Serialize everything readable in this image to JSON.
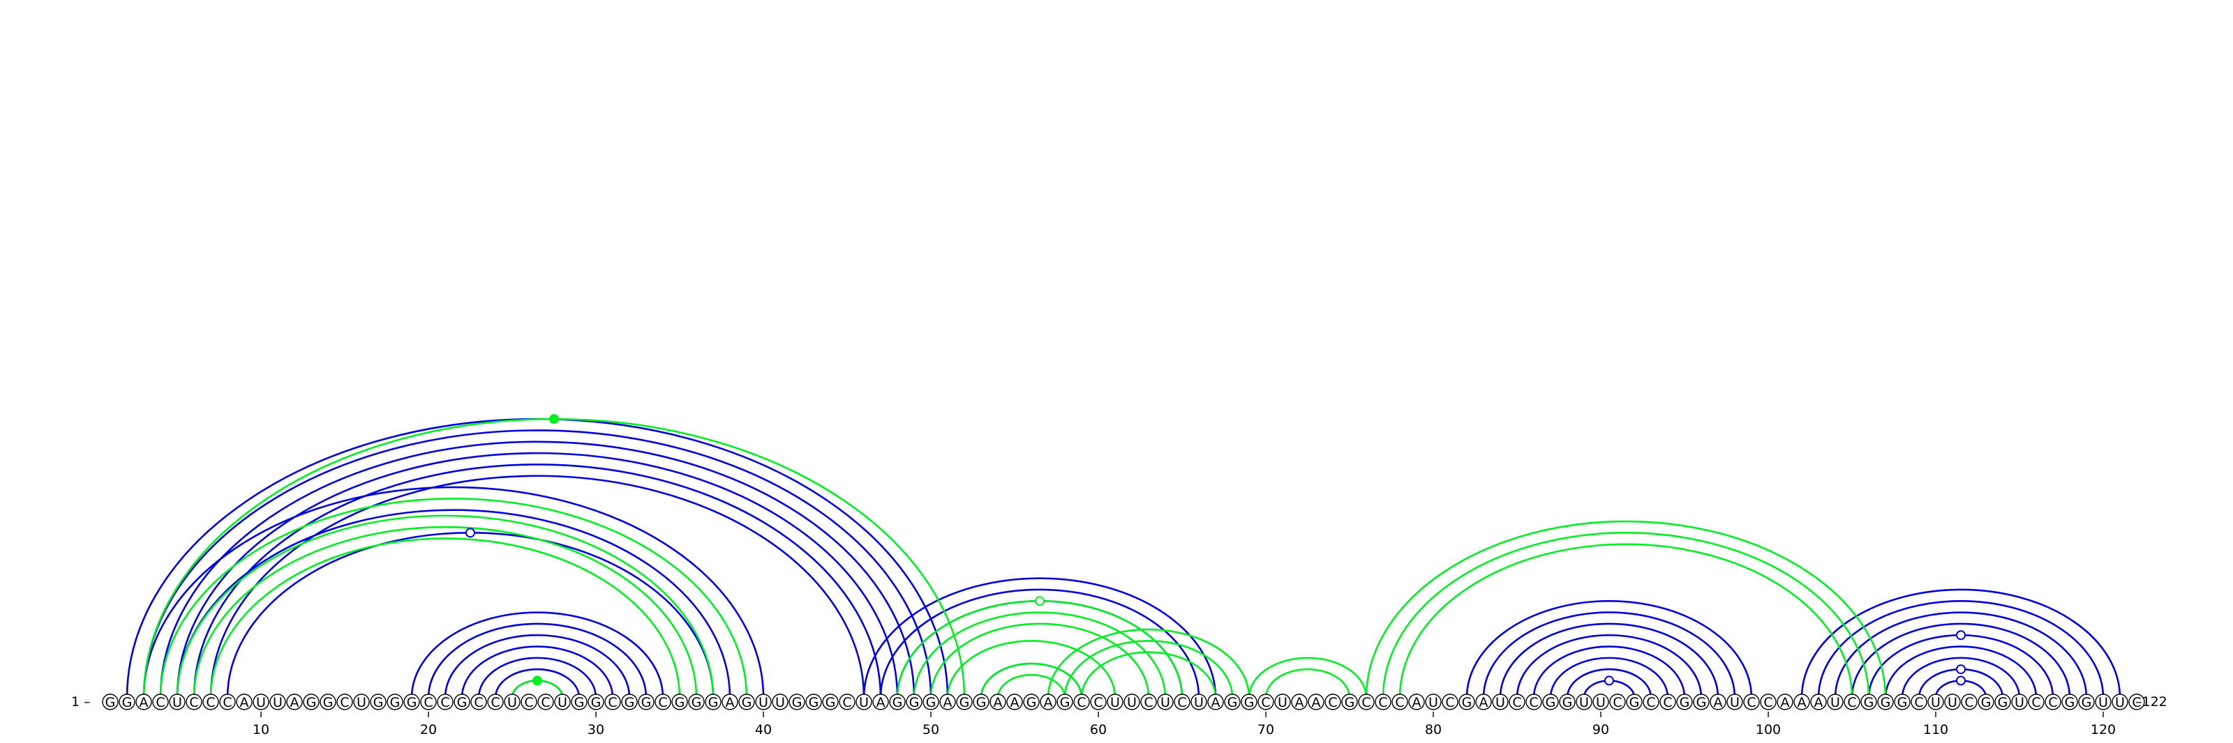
{
  "sequence": "GGACUCCCAUUAGGCUGGGCCGCCUCCUGGCGGCGGGAGUUGGGCUAGGGAGGAAGAGCCUUCUCUAGGCUAACGCCCAUCGAUCCGGUUCGCCGGAUCCAAAUCGGGCUUCGGUCCGGUUC",
  "start_label": "1 –",
  "end_label": "–122",
  "ticks": [
    "10",
    "20",
    "30",
    "40",
    "50",
    "60",
    "70",
    "80",
    "90",
    "100",
    "110",
    "120"
  ],
  "tick_positions": [
    10,
    20,
    30,
    40,
    50,
    60,
    70,
    80,
    90,
    100,
    110,
    120
  ],
  "colors": {
    "structure_a": "#0000dd",
    "structure_b": "#00ee22"
  },
  "arcs": [
    {
      "i": 2,
      "j": 51,
      "s": "a"
    },
    {
      "i": 3,
      "j": 50,
      "s": "a"
    },
    {
      "i": 4,
      "j": 49,
      "s": "a"
    },
    {
      "i": 5,
      "j": 48,
      "s": "a"
    },
    {
      "i": 6,
      "j": 47,
      "s": "a"
    },
    {
      "i": 7,
      "j": 46,
      "s": "a"
    },
    {
      "i": 3,
      "j": 40,
      "s": "a"
    },
    {
      "i": 5,
      "j": 38,
      "s": "a"
    },
    {
      "i": 8,
      "j": 37,
      "s": "a"
    },
    {
      "i": 19,
      "j": 34,
      "s": "a"
    },
    {
      "i": 20,
      "j": 33,
      "s": "a"
    },
    {
      "i": 21,
      "j": 32,
      "s": "a"
    },
    {
      "i": 22,
      "j": 31,
      "s": "a"
    },
    {
      "i": 23,
      "j": 30,
      "s": "a"
    },
    {
      "i": 24,
      "j": 29,
      "s": "a"
    },
    {
      "i": 25,
      "j": 28,
      "s": "a"
    },
    {
      "i": 46,
      "j": 67,
      "s": "a"
    },
    {
      "i": 47,
      "j": 66,
      "s": "a"
    },
    {
      "i": 48,
      "j": 65,
      "s": "a"
    },
    {
      "i": 53,
      "j": 59,
      "s": "a"
    },
    {
      "i": 82,
      "j": 99,
      "s": "a"
    },
    {
      "i": 83,
      "j": 98,
      "s": "a"
    },
    {
      "i": 84,
      "j": 97,
      "s": "a"
    },
    {
      "i": 85,
      "j": 96,
      "s": "a"
    },
    {
      "i": 86,
      "j": 95,
      "s": "a"
    },
    {
      "i": 87,
      "j": 94,
      "s": "a"
    },
    {
      "i": 88,
      "j": 93,
      "s": "a"
    },
    {
      "i": 89,
      "j": 92,
      "s": "a"
    },
    {
      "i": 102,
      "j": 121,
      "s": "a"
    },
    {
      "i": 103,
      "j": 120,
      "s": "a"
    },
    {
      "i": 104,
      "j": 119,
      "s": "a"
    },
    {
      "i": 105,
      "j": 118,
      "s": "a"
    },
    {
      "i": 106,
      "j": 117,
      "s": "a"
    },
    {
      "i": 107,
      "j": 116,
      "s": "a"
    },
    {
      "i": 108,
      "j": 115,
      "s": "a"
    },
    {
      "i": 109,
      "j": 114,
      "s": "a"
    },
    {
      "i": 110,
      "j": 113,
      "s": "a"
    },
    {
      "i": 3,
      "j": 52,
      "s": "b"
    },
    {
      "i": 4,
      "j": 39,
      "s": "b"
    },
    {
      "i": 5,
      "j": 37,
      "s": "b"
    },
    {
      "i": 6,
      "j": 36,
      "s": "b"
    },
    {
      "i": 7,
      "j": 35,
      "s": "b"
    },
    {
      "i": 25,
      "j": 28,
      "s": "b"
    },
    {
      "i": 48,
      "j": 65,
      "s": "b"
    },
    {
      "i": 49,
      "j": 64,
      "s": "b"
    },
    {
      "i": 50,
      "j": 63,
      "s": "b"
    },
    {
      "i": 51,
      "j": 61,
      "s": "b"
    },
    {
      "i": 53,
      "j": 59,
      "s": "b"
    },
    {
      "i": 54,
      "j": 58,
      "s": "b"
    },
    {
      "i": 57,
      "j": 69,
      "s": "b"
    },
    {
      "i": 58,
      "j": 68,
      "s": "b"
    },
    {
      "i": 59,
      "j": 67,
      "s": "b"
    },
    {
      "i": 69,
      "j": 76,
      "s": "b"
    },
    {
      "i": 70,
      "j": 75,
      "s": "b"
    },
    {
      "i": 76,
      "j": 107,
      "s": "b"
    },
    {
      "i": 77,
      "j": 106,
      "s": "b"
    },
    {
      "i": 78,
      "j": 105,
      "s": "b"
    }
  ]
}
